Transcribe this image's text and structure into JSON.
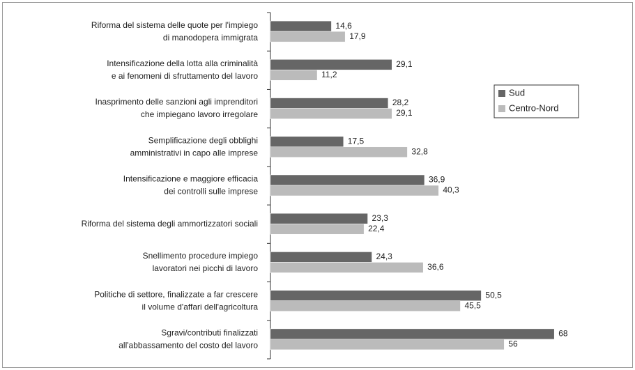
{
  "chart_data": {
    "type": "bar",
    "orientation": "horizontal",
    "categories": [
      [
        "Riforma del sistema delle quote per l'impiego",
        "di manodopera immigrata"
      ],
      [
        "Intensificazione della lotta alla criminalità",
        "e ai fenomeni di sfruttamento del lavoro"
      ],
      [
        "Inasprimento delle sanzioni agli imprenditori",
        "che impiegano lavoro irregolare"
      ],
      [
        "Semplificazione degli obblighi",
        "amministrativi in capo alle imprese"
      ],
      [
        "Intensificazione e maggiore efficacia",
        "dei controlli sulle imprese"
      ],
      [
        "Riforma del sistema degli ammortizzatori sociali"
      ],
      [
        "Snellimento procedure impiego",
        "lavoratori nei picchi di lavoro"
      ],
      [
        "Politiche di settore, finalizzate a far crescere",
        "il volume d'affari dell'agricoltura"
      ],
      [
        "Sgravi/contributi finalizzati",
        "all'abbassamento del costo del lavoro"
      ]
    ],
    "series": [
      {
        "name": "Sud",
        "color": "#666666",
        "values": [
          14.6,
          29.1,
          28.2,
          17.5,
          36.9,
          23.3,
          24.3,
          50.5,
          68
        ],
        "value_labels": [
          "14,6",
          "29,1",
          "28,2",
          "17,5",
          "36,9",
          "23,3",
          "24,3",
          "50,5",
          "68"
        ]
      },
      {
        "name": "Centro-Nord",
        "color": "#bbbbbb",
        "values": [
          17.9,
          11.2,
          29.1,
          32.8,
          40.3,
          22.4,
          36.6,
          45.5,
          56
        ],
        "value_labels": [
          "17,9",
          "11,2",
          "29,1",
          "32,8",
          "40,3",
          "22,4",
          "36,6",
          "45,5",
          "56"
        ]
      }
    ],
    "xlim": [
      0,
      85
    ],
    "legend": "right"
  }
}
